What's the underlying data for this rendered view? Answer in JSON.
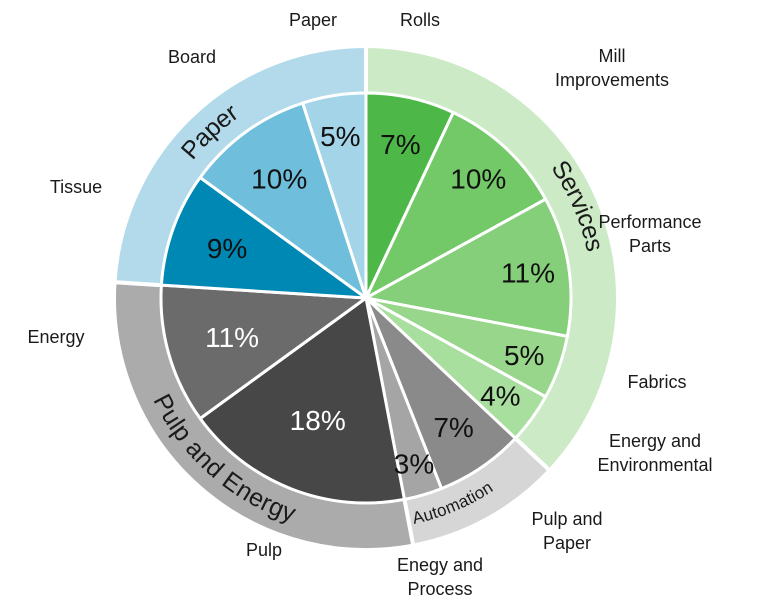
{
  "chart_data": {
    "type": "pie",
    "title": "",
    "slices": [
      {
        "label": "Rolls",
        "value": 7,
        "display": "7%",
        "color": "#4db848",
        "text_color": "#111111",
        "label_lines": [
          "Rolls"
        ]
      },
      {
        "label": "Mill Improvements",
        "value": 10,
        "display": "10%",
        "color": "#73c867",
        "text_color": "#111111",
        "label_lines": [
          "Mill",
          "Improvements"
        ]
      },
      {
        "label": "Performance Parts",
        "value": 11,
        "display": "11%",
        "color": "#85cf7a",
        "text_color": "#111111",
        "label_lines": [
          "Performance",
          "Parts"
        ]
      },
      {
        "label": "Fabrics",
        "value": 5,
        "display": "5%",
        "color": "#98d78b",
        "text_color": "#111111",
        "label_lines": [
          "Fabrics"
        ]
      },
      {
        "label": "Energy and Environmental",
        "value": 4,
        "display": "4%",
        "color": "#a9df9e",
        "text_color": "#111111",
        "label_lines": [
          "Energy and",
          "Environmental"
        ]
      },
      {
        "label": "Pulp and Paper",
        "value": 7,
        "display": "7%",
        "color": "#8a8a8a",
        "text_color": "#111111",
        "label_lines": [
          "Pulp and",
          "Paper"
        ]
      },
      {
        "label": "Enegy and Process",
        "value": 3,
        "display": "3%",
        "color": "#a5a5a5",
        "text_color": "#111111",
        "label_lines": [
          "Enegy and",
          "Process"
        ]
      },
      {
        "label": "Pulp",
        "value": 18,
        "display": "18%",
        "color": "#474747",
        "text_color": "#ffffff",
        "label_lines": [
          "Pulp"
        ]
      },
      {
        "label": "Energy",
        "value": 11,
        "display": "11%",
        "color": "#6b6b6b",
        "text_color": "#ffffff",
        "label_lines": [
          "Energy"
        ]
      },
      {
        "label": "Tissue",
        "value": 9,
        "display": "9%",
        "color": "#0088b4",
        "text_color": "#111111",
        "label_lines": [
          "Tissue"
        ]
      },
      {
        "label": "Board",
        "value": 10,
        "display": "10%",
        "color": "#6fbedb",
        "text_color": "#111111",
        "label_lines": [
          "Board"
        ]
      },
      {
        "label": "Paper",
        "value": 5,
        "display": "5%",
        "color": "#a3d4e8",
        "text_color": "#111111",
        "label_lines": [
          "Paper"
        ]
      }
    ],
    "groups": [
      {
        "name": "Services",
        "slices": [
          0,
          1,
          2,
          3,
          4
        ],
        "color": "#cdeac7"
      },
      {
        "name": "Automation",
        "slices": [
          5,
          6
        ],
        "color": "#d6d6d6"
      },
      {
        "name": "Pulp and Energy",
        "slices": [
          7,
          8
        ],
        "color": "#ababab"
      },
      {
        "name": "Paper",
        "slices": [
          9,
          10,
          11
        ],
        "color": "#b2daeb"
      }
    ],
    "legend": "none"
  }
}
